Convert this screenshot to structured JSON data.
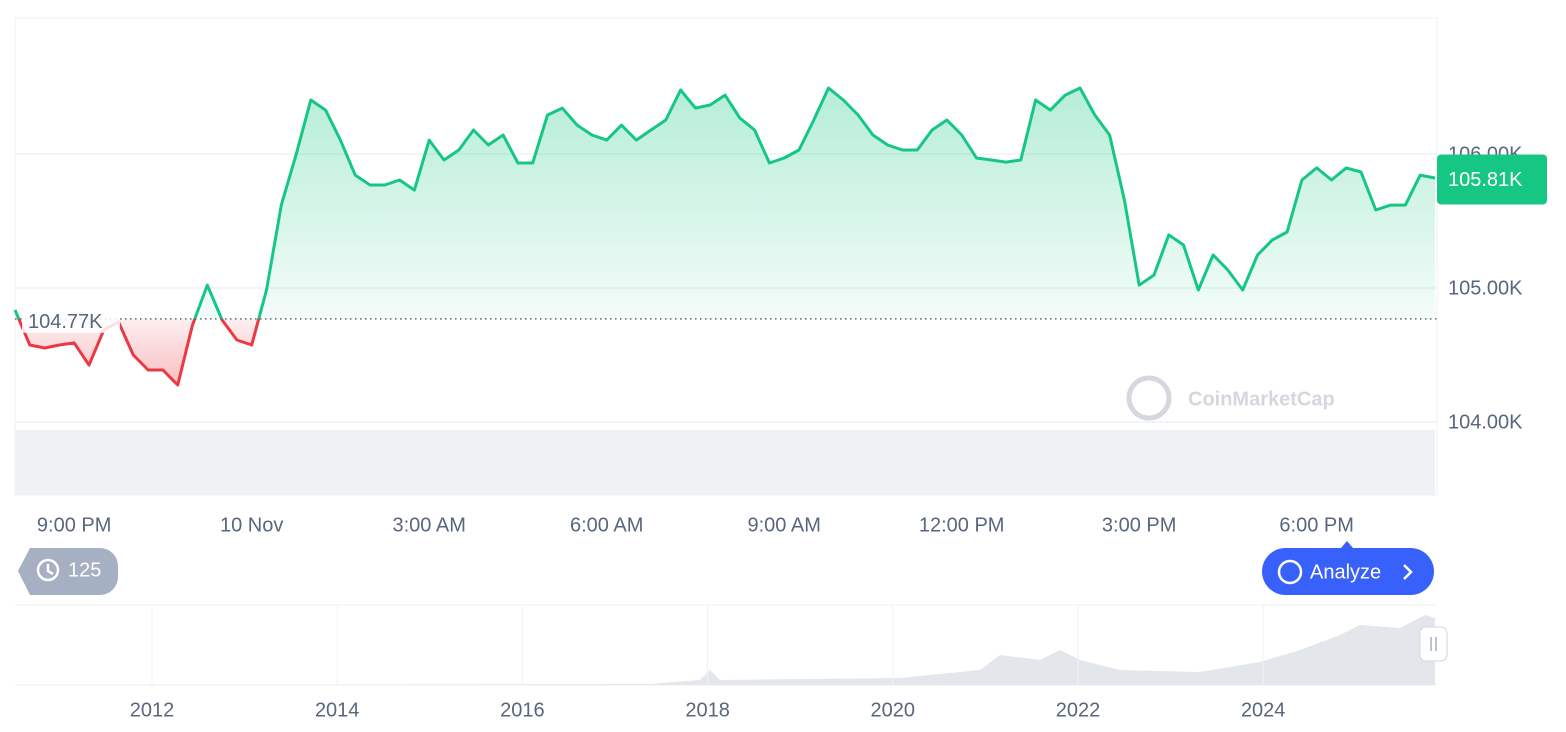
{
  "chart_data": {
    "type": "line",
    "categories": [
      null,
      null,
      null,
      null,
      "9:00 PM",
      null,
      null,
      null,
      null,
      null,
      null,
      null,
      null,
      null,
      null,
      null,
      "10 Nov",
      null,
      null,
      null,
      null,
      null,
      null,
      null,
      null,
      null,
      null,
      null,
      "3:00 AM",
      null,
      null,
      null,
      null,
      null,
      null,
      null,
      null,
      null,
      null,
      null,
      "6:00 AM",
      null,
      null,
      null,
      null,
      null,
      null,
      null,
      null,
      null,
      null,
      null,
      "9:00 AM",
      null,
      null,
      null,
      null,
      null,
      null,
      null,
      null,
      null,
      null,
      null,
      "12:00 PM",
      null,
      null,
      null,
      null,
      null,
      null,
      null,
      null,
      null,
      null,
      null,
      "3:00 PM",
      null,
      null,
      null,
      null,
      null,
      null,
      null,
      null,
      null,
      null,
      null,
      "6:00 PM",
      null,
      null,
      null,
      null,
      null,
      null,
      null,
      null
    ],
    "series": [
      {
        "color": "#16c784",
        "down_color": "#ea3943",
        "values": [
          104836,
          104575,
          104552,
          104575,
          104590,
          104425,
          104687,
          104746,
          104500,
          104388,
          104388,
          104276,
          104724,
          105022,
          104761,
          104612,
          104575,
          104985,
          105619,
          105993,
          106403,
          106328,
          106104,
          105843,
          105769,
          105769,
          105806,
          105731,
          106104,
          105955,
          106030,
          106179,
          106067,
          106142,
          105933,
          105933,
          106291,
          106343,
          106216,
          106142,
          106104,
          106216,
          106104,
          106179,
          106254,
          106478,
          106343,
          106366,
          106440,
          106269,
          106179,
          105933,
          105970,
          106030,
          106254,
          106493,
          106403,
          106291,
          106142,
          106067,
          106030,
          106030,
          106179,
          106254,
          106142,
          105970,
          105955,
          105940,
          105955,
          106403,
          106328,
          106440,
          106493,
          106291,
          106142,
          105657,
          105022,
          105097,
          105396,
          105321,
          104985,
          105246,
          105134,
          104985,
          105246,
          105358,
          105418,
          105806,
          105896,
          105806,
          105896,
          105866,
          105582,
          105619,
          105619,
          105843,
          105821
        ]
      }
    ],
    "reference": {
      "value": 104770,
      "label": "104.77K"
    },
    "current": {
      "value": 105810,
      "label": "105.81K"
    },
    "ylim": [
      104000,
      107030
    ],
    "yticks": [
      {
        "value": 104000,
        "label": "104.00K"
      },
      {
        "value": 105000,
        "label": "105.00K"
      },
      {
        "value": 106000,
        "label": "106.00K"
      }
    ],
    "grid": true
  },
  "ui": {
    "history_count": 125,
    "button": "Analyze",
    "watermark": "CoinMarketCap",
    "navigator_labels": [
      "2012",
      "2014",
      "2016",
      "2018",
      "2020",
      "2022",
      "2024"
    ]
  }
}
